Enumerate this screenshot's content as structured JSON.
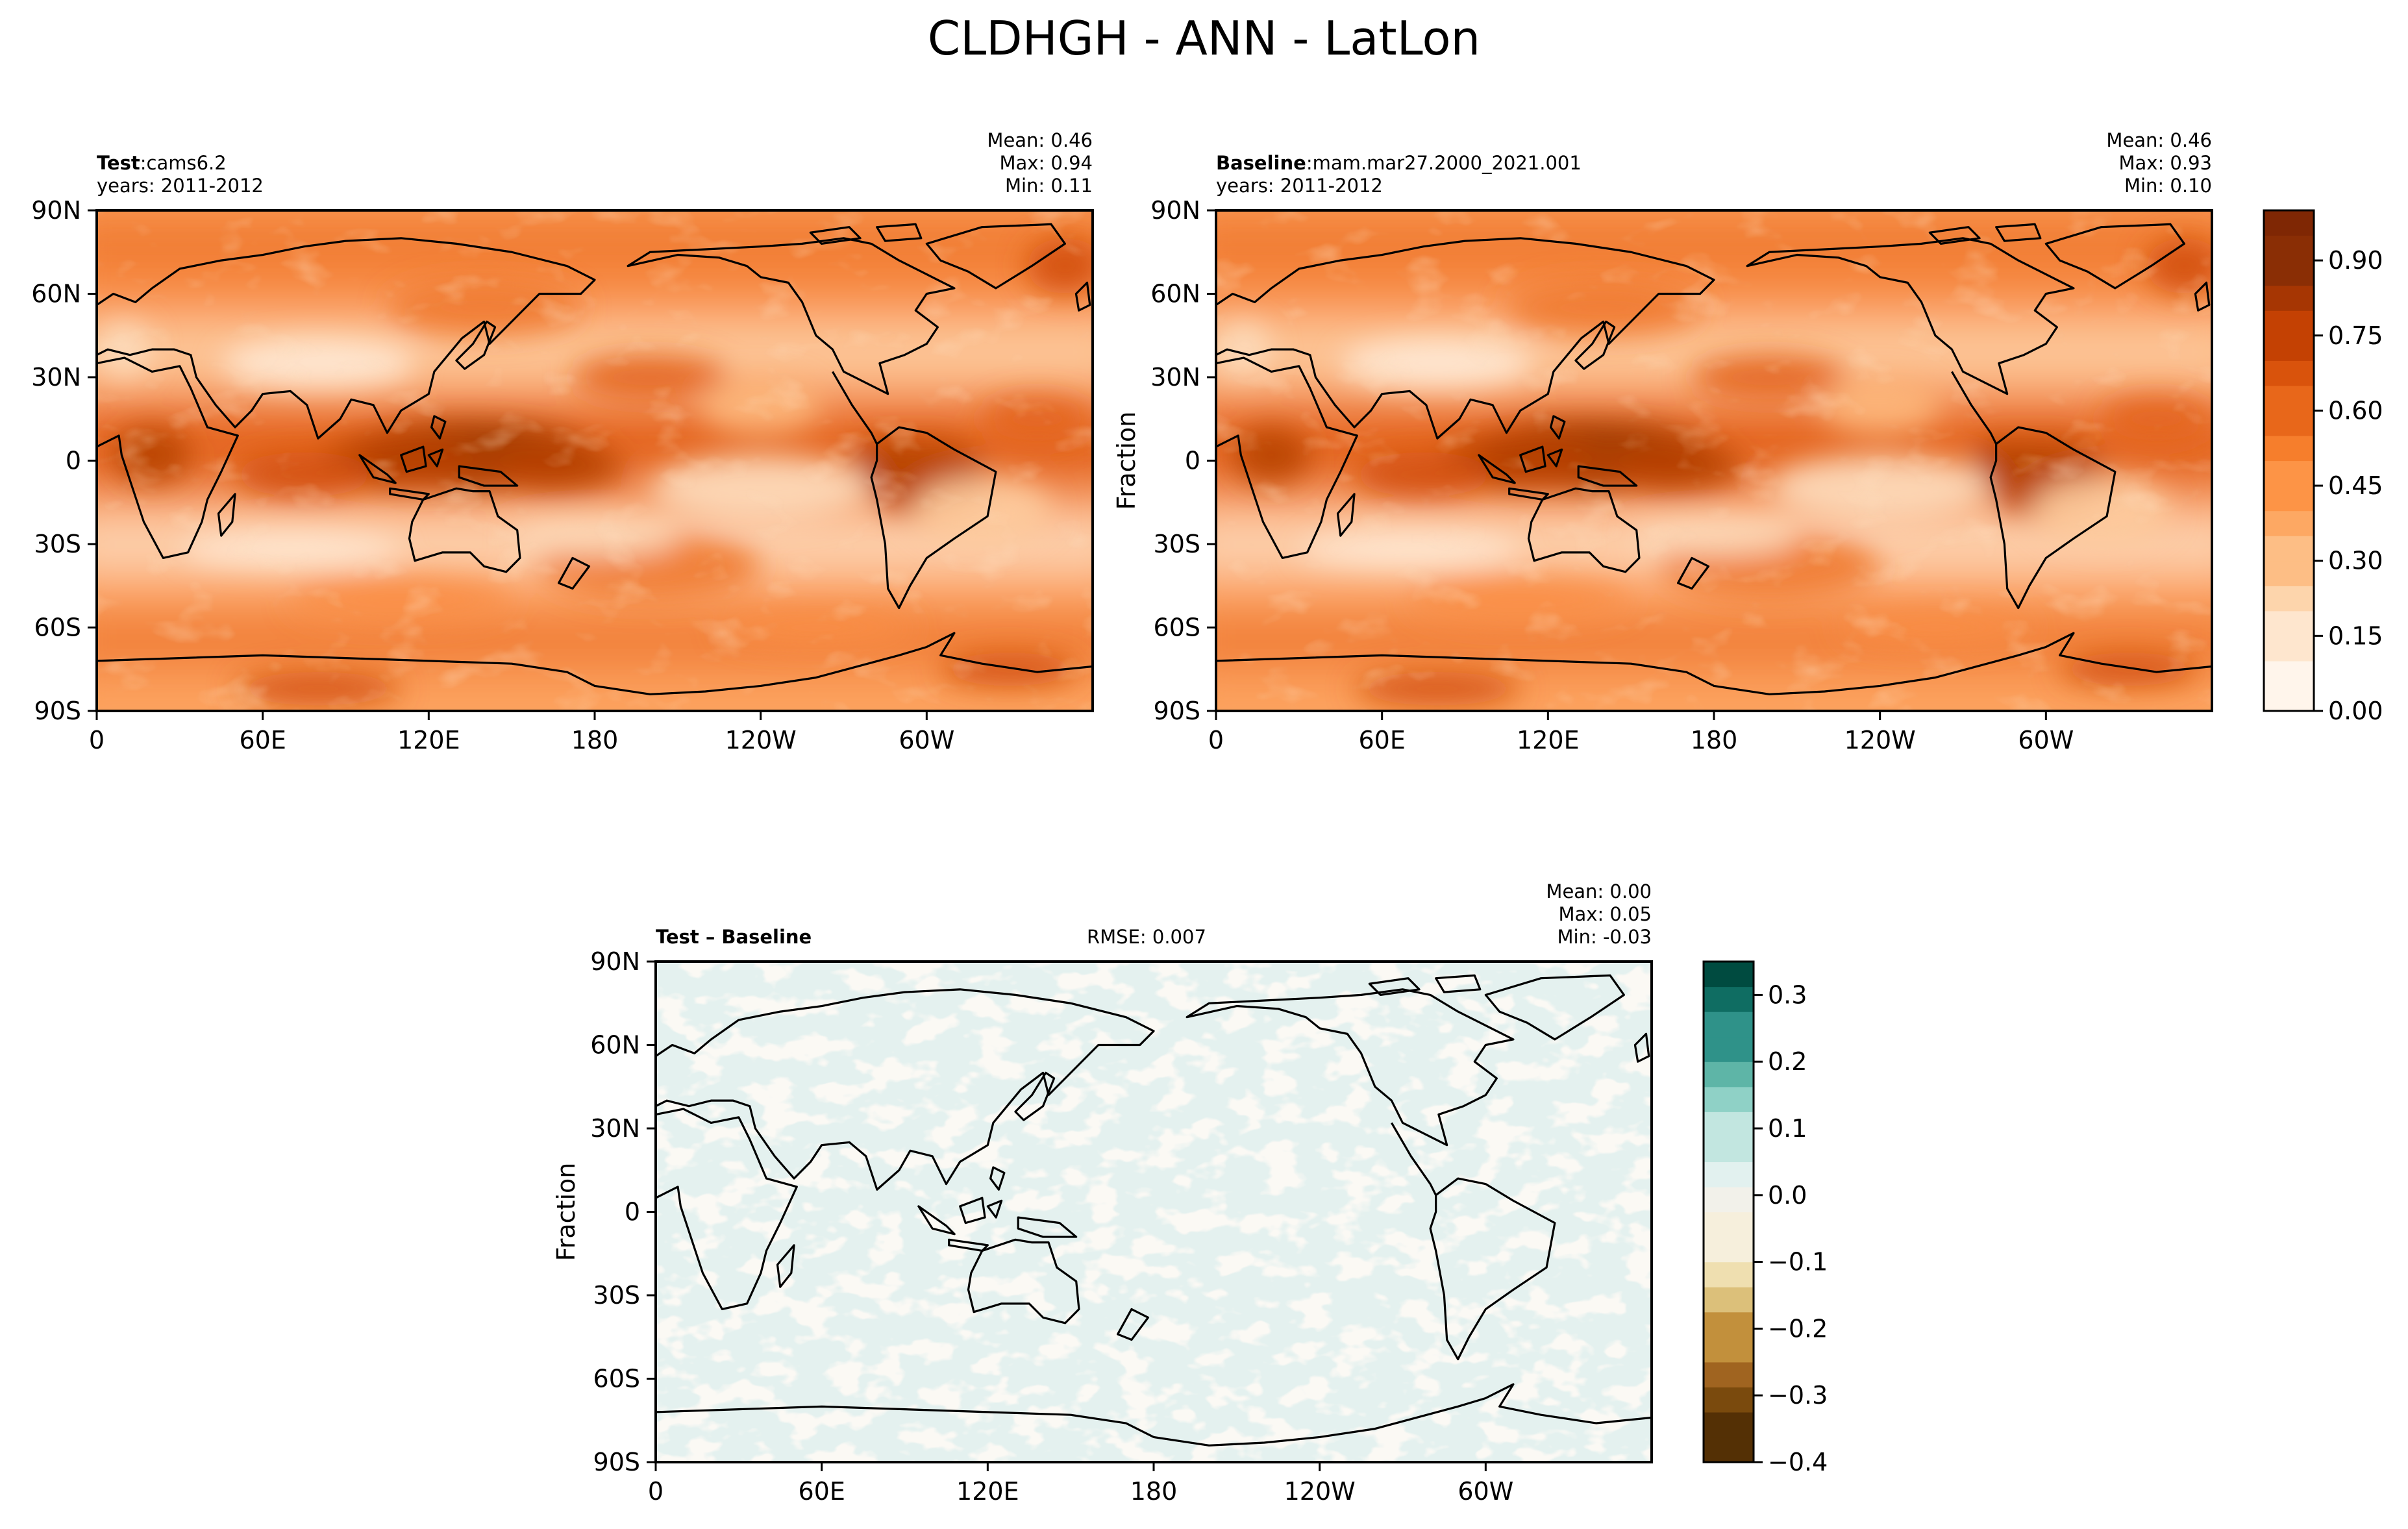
{
  "figure": {
    "title": "CLDHGH - ANN - LatLon"
  },
  "panels": {
    "test": {
      "label_bold": "Test",
      "label_sep": ":",
      "label_value": "cams6.2",
      "years": "years: 2011-2012",
      "stats": {
        "mean": "Mean:  0.46",
        "max": "Max:  0.94",
        "min": "Min:  0.11"
      }
    },
    "baseline": {
      "label_bold": "Baseline",
      "label_sep": ":",
      "label_value": "mam.mar27.2000_2021.001",
      "years": "years: 2011-2012",
      "ylabel": "Fraction",
      "stats": {
        "mean": "Mean:  0.46",
        "max": "Max:  0.93",
        "min": "Min:  0.10"
      }
    },
    "diff": {
      "label_bold": "Test – Baseline",
      "rmse": "RMSE: 0.007",
      "ylabel": "Fraction",
      "stats": {
        "mean": "Mean:  0.00",
        "max": "Max:  0.05",
        "min": "Min: -0.03"
      }
    }
  },
  "colors": {
    "coast": "#000000",
    "oranges": [
      "#fff5eb",
      "#fee9d5",
      "#fddcbd",
      "#fdcb9d",
      "#fdb77c",
      "#fda35f",
      "#f98e45",
      "#f07a30",
      "#e3641d",
      "#d3500e",
      "#b84204",
      "#993606",
      "#7f2704"
    ],
    "brbg": [
      "#543005",
      "#8c510a",
      "#bf812d",
      "#dfc27d",
      "#f6e8c3",
      "#f5f5f5",
      "#c7eae5",
      "#80cdc1",
      "#35978f",
      "#01665e",
      "#003c30"
    ]
  },
  "chart_data": [
    {
      "type": "heatmap",
      "name": "Test",
      "xlabel": "",
      "ylabel": "",
      "x_ticks": [
        "0",
        "60E",
        "120E",
        "180",
        "120W",
        "60W"
      ],
      "y_ticks": [
        "90N",
        "60N",
        "30N",
        "0",
        "30S",
        "60S",
        "90S"
      ],
      "x_range": [
        0,
        360
      ],
      "y_range": [
        -90,
        90
      ],
      "value_range": [
        0.0,
        1.0
      ],
      "stats": {
        "mean": 0.46,
        "max": 0.94,
        "min": 0.11
      },
      "description_features": [
        "high cloud maxima over Maritime Continent (~0.85)",
        "ITCZ band near equator",
        "minimum over subtropics (~0.15–0.25)"
      ]
    },
    {
      "type": "heatmap",
      "name": "Baseline",
      "xlabel": "",
      "ylabel": "Fraction",
      "x_ticks": [
        "0",
        "60E",
        "120E",
        "180",
        "120W",
        "60W"
      ],
      "y_ticks": [
        "90N",
        "60N",
        "30N",
        "0",
        "30S",
        "60S",
        "90S"
      ],
      "x_range": [
        0,
        360
      ],
      "y_range": [
        -90,
        90
      ],
      "value_range": [
        0.0,
        1.0
      ],
      "stats": {
        "mean": 0.46,
        "max": 0.93,
        "min": 0.1
      }
    },
    {
      "type": "heatmap",
      "name": "Test – Baseline",
      "xlabel": "",
      "ylabel": "Fraction",
      "x_ticks": [
        "0",
        "60E",
        "120E",
        "180",
        "120W",
        "60W"
      ],
      "y_ticks": [
        "90N",
        "60N",
        "30N",
        "0",
        "30S",
        "60S",
        "90S"
      ],
      "x_range": [
        0,
        360
      ],
      "y_range": [
        -90,
        90
      ],
      "value_range": [
        -0.4,
        0.35
      ],
      "stats": {
        "mean": 0.0,
        "max": 0.05,
        "min": -0.03,
        "rmse": 0.007
      }
    }
  ],
  "colorbars": {
    "top": {
      "ticks": [
        "0.90",
        "0.75",
        "0.60",
        "0.45",
        "0.30",
        "0.15",
        "0.00"
      ],
      "tick_values": [
        0.9,
        0.75,
        0.6,
        0.45,
        0.3,
        0.15,
        0.0
      ],
      "range": [
        0.0,
        1.0
      ]
    },
    "diff": {
      "ticks": [
        "0.3",
        "0.2",
        "0.1",
        "0.0",
        "−0.1",
        "−0.2",
        "−0.3",
        "−0.4"
      ],
      "tick_values": [
        0.3,
        0.2,
        0.1,
        0.0,
        -0.1,
        -0.2,
        -0.3,
        -0.4
      ],
      "range": [
        -0.4,
        0.35
      ]
    }
  }
}
